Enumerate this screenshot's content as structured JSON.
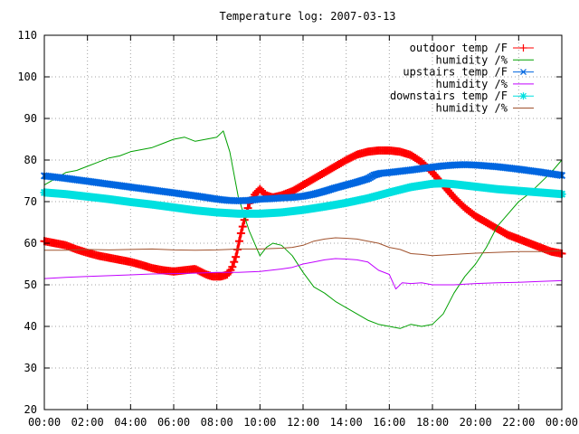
{
  "chart_data": {
    "type": "line",
    "title": "Temperature log: 2007-03-13",
    "xlabel": "",
    "ylabel": "",
    "xlim": [
      0,
      24
    ],
    "ylim": [
      20,
      110
    ],
    "x_ticks": [
      "00:00",
      "02:00",
      "04:00",
      "06:00",
      "08:00",
      "10:00",
      "12:00",
      "14:00",
      "16:00",
      "18:00",
      "20:00",
      "22:00",
      "00:00"
    ],
    "y_ticks": [
      20,
      30,
      40,
      50,
      60,
      70,
      80,
      90,
      100,
      110
    ],
    "grid": true,
    "legend_position": "top-right",
    "series": [
      {
        "name": "outdoor temp /F",
        "color": "#ff0000",
        "marker": "plus",
        "x": [
          0,
          0.5,
          1,
          1.5,
          2,
          2.5,
          3,
          3.5,
          4,
          4.5,
          5,
          5.5,
          6,
          6.5,
          7,
          7.5,
          7.8,
          8,
          8.2,
          8.5,
          8.7,
          8.9,
          9.1,
          9.3,
          9.5,
          9.8,
          10,
          10.3,
          10.6,
          11,
          11.5,
          12,
          12.5,
          13,
          13.5,
          14,
          14.5,
          15,
          15.5,
          16,
          16.5,
          17,
          17.5,
          18,
          18.5,
          19,
          19.5,
          20,
          20.5,
          21,
          21.5,
          22,
          22.5,
          23,
          23.5,
          24
        ],
        "values": [
          60.5,
          60,
          59.5,
          58.5,
          57.7,
          57,
          56.5,
          56,
          55.5,
          54.8,
          54,
          53.5,
          53.2,
          53.5,
          53.8,
          52.5,
          52,
          52,
          52,
          52.5,
          54,
          57,
          62,
          66,
          69.5,
          72,
          73,
          71.5,
          71,
          71.5,
          72.5,
          74,
          75.5,
          77,
          78.5,
          80,
          81.3,
          82,
          82.3,
          82.3,
          82,
          81.2,
          79.5,
          77,
          74,
          71,
          68.5,
          66.5,
          65,
          63.5,
          62,
          61,
          60,
          59,
          58,
          57.5
        ]
      },
      {
        "name": "humidity /%",
        "color": "#00a000",
        "marker": "none",
        "x": [
          0,
          0.5,
          1,
          1.5,
          2,
          2.5,
          3,
          3.5,
          4,
          4.5,
          5,
          5.5,
          6,
          6.5,
          7,
          7.5,
          8,
          8.3,
          8.6,
          9,
          9.5,
          10,
          10.3,
          10.6,
          11,
          11.5,
          12,
          12.5,
          13,
          13.5,
          14,
          14.5,
          15,
          15.5,
          16,
          16.5,
          17,
          17.5,
          18,
          18.5,
          19,
          19.5,
          20,
          20.5,
          21,
          21.5,
          22,
          22.5,
          23,
          23.5,
          24
        ],
        "values": [
          74,
          75.5,
          77,
          77.5,
          78.5,
          79.5,
          80.5,
          81,
          82,
          82.5,
          83,
          84,
          85,
          85.5,
          84.5,
          85,
          85.5,
          87,
          82,
          71,
          63,
          57,
          59,
          60,
          59.5,
          57,
          53,
          49.5,
          48,
          46,
          44.5,
          43,
          41.5,
          40.5,
          40,
          39.5,
          40.5,
          40,
          40.5,
          43,
          48,
          52,
          55,
          59,
          64,
          67,
          70,
          72,
          74.5,
          77,
          80
        ]
      },
      {
        "name": "upstairs temp /F",
        "color": "#0066e0",
        "marker": "cross",
        "x": [
          0,
          1,
          2,
          3,
          4,
          5,
          6,
          7,
          8,
          8.5,
          9,
          9.5,
          10,
          10.5,
          11,
          11.5,
          12,
          12.5,
          13,
          13.5,
          14,
          14.5,
          15,
          15.3,
          15.6,
          16,
          17,
          18,
          18.5,
          19,
          19.5,
          20,
          21,
          22,
          23,
          24
        ],
        "values": [
          76.2,
          75.6,
          74.9,
          74.2,
          73.5,
          72.8,
          72.1,
          71.4,
          70.6,
          70.3,
          70.2,
          70.3,
          70.6,
          70.7,
          70.9,
          71,
          71.3,
          71.8,
          72.5,
          73.3,
          74,
          74.7,
          75.5,
          76.4,
          76.8,
          77,
          77.6,
          78.3,
          78.6,
          78.8,
          78.9,
          78.8,
          78.4,
          77.8,
          77.1,
          76.3
        ]
      },
      {
        "name": "humidity /%",
        "color": "#c000ff",
        "marker": "none",
        "x": [
          0,
          1,
          2,
          3,
          4,
          5,
          6,
          7,
          8,
          9,
          10,
          10.5,
          11,
          11.5,
          12,
          12.5,
          13,
          13.5,
          14,
          14.5,
          15,
          15.5,
          16,
          16.3,
          16.6,
          17,
          17.5,
          18,
          19,
          20,
          21,
          22,
          23,
          24
        ],
        "values": [
          51.5,
          51.8,
          52,
          52.2,
          52.4,
          52.6,
          52.7,
          52.8,
          53,
          53,
          53.2,
          53.5,
          53.8,
          54.2,
          55,
          55.5,
          56,
          56.3,
          56.2,
          56,
          55.5,
          53.5,
          52.5,
          49,
          50.5,
          50.3,
          50.5,
          50,
          50,
          50.3,
          50.5,
          50.6,
          50.8,
          51
        ]
      },
      {
        "name": "downstairs temp /F",
        "color": "#00e0e0",
        "marker": "star",
        "x": [
          0,
          1,
          2,
          3,
          4,
          5,
          6,
          7,
          8,
          9,
          10,
          11,
          12,
          13,
          14,
          15,
          16,
          17,
          18,
          18.5,
          19,
          20,
          21,
          22,
          23,
          24
        ],
        "values": [
          72.2,
          71.8,
          71.2,
          70.6,
          69.9,
          69.3,
          68.6,
          67.9,
          67.4,
          67.1,
          67.1,
          67.4,
          68,
          68.8,
          69.7,
          70.8,
          72.2,
          73.5,
          74.3,
          74.4,
          74.2,
          73.6,
          73,
          72.6,
          72.2,
          71.8
        ]
      },
      {
        "name": "humidity /%",
        "color": "#a0522d",
        "marker": "none",
        "x": [
          0,
          1,
          2,
          3,
          4,
          5,
          6,
          7,
          8,
          9,
          10,
          11,
          11.5,
          12,
          12.5,
          13,
          13.5,
          14,
          14.5,
          15,
          15.5,
          16,
          16.5,
          17,
          17.5,
          18,
          19,
          20,
          21,
          22,
          23,
          24
        ],
        "values": [
          58.3,
          58.3,
          58.5,
          58.4,
          58.5,
          58.6,
          58.4,
          58.3,
          58.4,
          58.6,
          58.6,
          58.8,
          59,
          59.5,
          60.5,
          61,
          61.3,
          61.2,
          61,
          60.5,
          60,
          59,
          58.5,
          57.5,
          57.3,
          57,
          57.3,
          57.6,
          57.8,
          58,
          58,
          58.2
        ]
      }
    ]
  }
}
